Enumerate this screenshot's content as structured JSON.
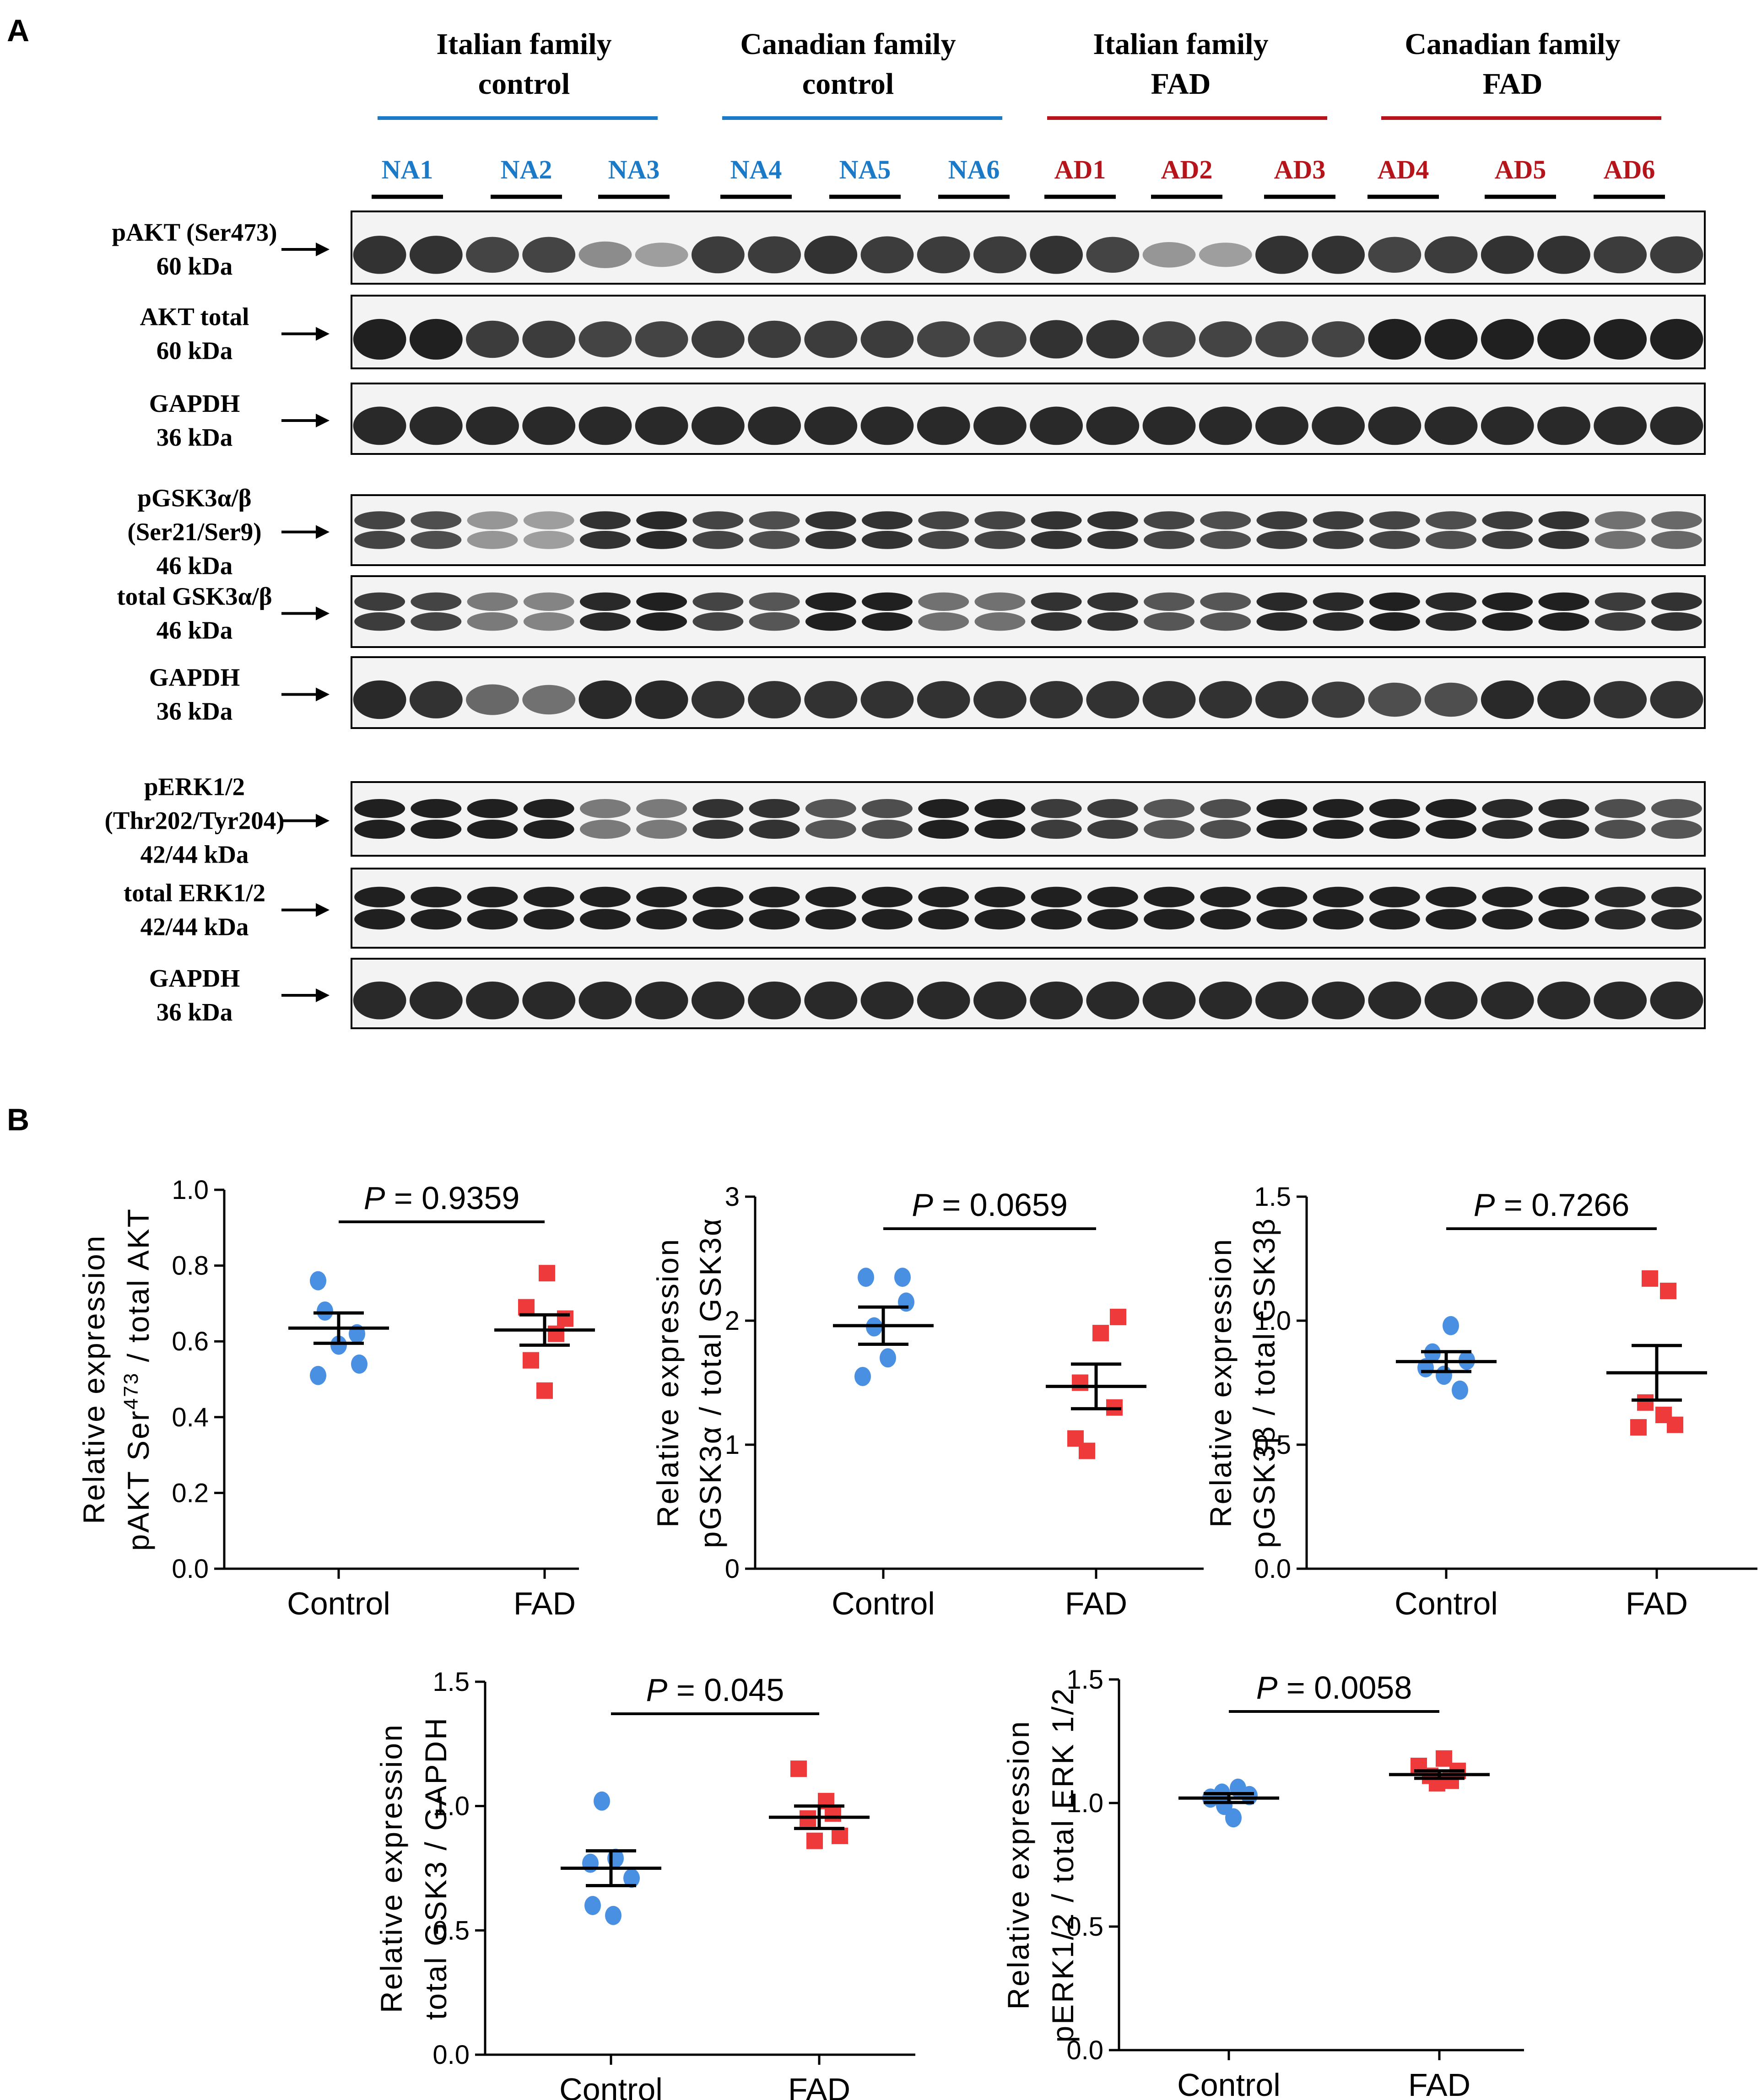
{
  "panel_a": {
    "label": "A",
    "groups": [
      {
        "line1": "Italian family",
        "line2": "control",
        "color": "#1a7ac8"
      },
      {
        "line1": "Canadian family",
        "line2": "control",
        "color": "#1a7ac8"
      },
      {
        "line1": "Italian family",
        "line2": "FAD",
        "color": "#b5141b"
      },
      {
        "line1": "Canadian family",
        "line2": "FAD",
        "color": "#b5141b"
      }
    ],
    "samples": [
      {
        "name": "NA1",
        "color": "#1a7ac8"
      },
      {
        "name": "NA2",
        "color": "#1a7ac8"
      },
      {
        "name": "NA3",
        "color": "#1a7ac8"
      },
      {
        "name": "NA4",
        "color": "#1a7ac8"
      },
      {
        "name": "NA5",
        "color": "#1a7ac8"
      },
      {
        "name": "NA6",
        "color": "#1a7ac8"
      },
      {
        "name": "AD1",
        "color": "#b5141b"
      },
      {
        "name": "AD2",
        "color": "#b5141b"
      },
      {
        "name": "AD3",
        "color": "#b5141b"
      },
      {
        "name": "AD4",
        "color": "#b5141b"
      },
      {
        "name": "AD5",
        "color": "#b5141b"
      },
      {
        "name": "AD6",
        "color": "#b5141b"
      }
    ],
    "blots": [
      {
        "lines": [
          "pAKT (Ser473)",
          "60 kDa"
        ],
        "bands": 1,
        "intensity": [
          0.9,
          0.9,
          0.8,
          0.8,
          0.4,
          0.3,
          0.85,
          0.85,
          0.9,
          0.85,
          0.85,
          0.85,
          0.9,
          0.8,
          0.35,
          0.3,
          0.9,
          0.9,
          0.8,
          0.85,
          0.9,
          0.9,
          0.85,
          0.85
        ]
      },
      {
        "lines": [
          "AKT total",
          "60 kDa"
        ],
        "bands": 1,
        "intensity": [
          1,
          1,
          0.85,
          0.85,
          0.8,
          0.8,
          0.85,
          0.85,
          0.85,
          0.85,
          0.8,
          0.8,
          0.9,
          0.9,
          0.8,
          0.8,
          0.8,
          0.8,
          1,
          1,
          1,
          1,
          1,
          1
        ]
      },
      {
        "lines": [
          "GAPDH",
          "36 kDa"
        ],
        "bands": 1,
        "intensity": [
          0.95,
          0.95,
          0.95,
          0.95,
          0.95,
          0.95,
          0.95,
          0.95,
          0.95,
          0.95,
          0.95,
          0.95,
          0.95,
          0.95,
          0.95,
          0.95,
          0.95,
          0.95,
          0.95,
          0.95,
          0.95,
          0.95,
          0.95,
          0.95
        ]
      },
      {
        "lines": [
          "pGSK3α/β",
          "(Ser21/Ser9)",
          "46 kDa"
        ],
        "bands": 2,
        "intensity": [
          0.8,
          0.75,
          0.35,
          0.3,
          0.9,
          0.95,
          0.8,
          0.75,
          0.9,
          0.9,
          0.8,
          0.8,
          0.9,
          0.9,
          0.8,
          0.75,
          0.85,
          0.85,
          0.8,
          0.75,
          0.85,
          0.9,
          0.55,
          0.6
        ]
      },
      {
        "lines": [
          "total GSK3α/β",
          "46 kDa"
        ],
        "bands": 2,
        "intensity": [
          0.85,
          0.8,
          0.5,
          0.45,
          0.95,
          1,
          0.8,
          0.7,
          1,
          1,
          0.55,
          0.55,
          0.9,
          0.9,
          0.7,
          0.7,
          0.95,
          0.95,
          1,
          0.95,
          1,
          1,
          0.85,
          0.9
        ]
      },
      {
        "lines": [
          "GAPDH",
          "36 kDa"
        ],
        "bands": 1,
        "intensity": [
          0.95,
          0.9,
          0.6,
          0.55,
          0.95,
          0.95,
          0.9,
          0.9,
          0.9,
          0.9,
          0.9,
          0.9,
          0.9,
          0.9,
          0.9,
          0.9,
          0.9,
          0.85,
          0.75,
          0.75,
          0.95,
          0.95,
          0.9,
          0.9
        ]
      },
      {
        "lines": [
          "pERK1/2",
          "(Thr202/Tyr204)",
          "42/44 kDa"
        ],
        "bands": 2,
        "intensity": [
          1,
          1,
          1,
          1,
          0.5,
          0.5,
          0.9,
          0.9,
          0.7,
          0.75,
          1,
          1,
          0.85,
          0.85,
          0.7,
          0.75,
          1,
          1,
          1,
          1,
          0.95,
          0.95,
          0.75,
          0.7
        ]
      },
      {
        "lines": [
          "total ERK1/2",
          "42/44 kDa"
        ],
        "bands": 2,
        "intensity": [
          1,
          1,
          1,
          1,
          1,
          1,
          1,
          1,
          1,
          1,
          1,
          1,
          1,
          1,
          1,
          1,
          1,
          1,
          1,
          1,
          1,
          1,
          0.95,
          0.95
        ]
      },
      {
        "lines": [
          "GAPDH",
          "36 kDa"
        ],
        "bands": 1,
        "intensity": [
          0.95,
          0.95,
          0.95,
          0.95,
          0.95,
          0.95,
          0.95,
          0.95,
          0.95,
          0.95,
          0.95,
          0.95,
          0.95,
          0.95,
          0.95,
          0.95,
          0.95,
          0.95,
          0.95,
          0.95,
          0.95,
          0.95,
          0.95,
          0.95
        ]
      }
    ]
  },
  "panel_b": {
    "label": "B"
  },
  "colors": {
    "control": "#4a90e2",
    "fad": "#ee3a3a",
    "blue_text": "#1a7ac8",
    "red_text": "#b5141b"
  },
  "chart_data": [
    {
      "type": "scatter",
      "categories": [
        "Control",
        "FAD"
      ],
      "ylabel_line1": "Relative expression",
      "ylabel_line2_pre": "pAKT Ser",
      "ylabel_line2_sup": "473",
      "ylabel_line2_post": " / total AKT",
      "ylim": [
        0,
        1.0
      ],
      "yticks": [
        "0.0",
        "0.2",
        "0.4",
        "0.6",
        "0.8",
        "1.0"
      ],
      "ytick_values": [
        0,
        0.2,
        0.4,
        0.6,
        0.8,
        1.0
      ],
      "p_italic": "P",
      "p_text": " = 0.9359",
      "series": [
        {
          "values": [
            0.76,
            0.68,
            0.62,
            0.59,
            0.54,
            0.51
          ],
          "mean": 0.635,
          "sem": 0.04
        },
        {
          "values": [
            0.78,
            0.69,
            0.66,
            0.62,
            0.55,
            0.47
          ],
          "mean": 0.63,
          "sem": 0.04
        }
      ]
    },
    {
      "type": "scatter",
      "categories": [
        "Control",
        "FAD"
      ],
      "ylabel_line1": "Relative expression",
      "ylabel_line2_pre": "pGSK3α / total GSK3α",
      "ylabel_line2_sup": "",
      "ylabel_line2_post": "",
      "ylim": [
        0,
        3
      ],
      "yticks": [
        "0",
        "1",
        "2",
        "3"
      ],
      "ytick_values": [
        0,
        1,
        2,
        3
      ],
      "p_italic": "P",
      "p_text": " = 0.0659",
      "series": [
        {
          "values": [
            2.35,
            2.35,
            2.15,
            1.95,
            1.7,
            1.55
          ],
          "mean": 1.96,
          "sem": 0.15
        },
        {
          "values": [
            2.03,
            1.9,
            1.5,
            1.3,
            1.05,
            0.95
          ],
          "mean": 1.47,
          "sem": 0.18
        }
      ]
    },
    {
      "type": "scatter",
      "categories": [
        "Control",
        "FAD"
      ],
      "ylabel_line1": "Relative expression",
      "ylabel_line2_pre": "pGSK3β / total GSK3β",
      "ylabel_line2_sup": "",
      "ylabel_line2_post": "",
      "ylim": [
        0,
        1.5
      ],
      "yticks": [
        "0.0",
        "0.5",
        "1.0",
        "1.5"
      ],
      "ytick_values": [
        0,
        0.5,
        1.0,
        1.5
      ],
      "p_italic": "P",
      "p_text": " = 0.7266",
      "series": [
        {
          "values": [
            0.98,
            0.87,
            0.84,
            0.81,
            0.78,
            0.72
          ],
          "mean": 0.835,
          "sem": 0.04
        },
        {
          "values": [
            1.17,
            1.12,
            0.67,
            0.62,
            0.58,
            0.57
          ],
          "mean": 0.79,
          "sem": 0.11
        }
      ]
    },
    {
      "type": "scatter",
      "categories": [
        "Control",
        "FAD"
      ],
      "ylabel_line1": "Relative expression",
      "ylabel_line2_pre": "total GSK3 / GAPDH",
      "ylabel_line2_sup": "",
      "ylabel_line2_post": "",
      "ylim": [
        0,
        1.5
      ],
      "yticks": [
        "0.0",
        "0.5",
        "1.0",
        "1.5"
      ],
      "ytick_values": [
        0,
        0.5,
        1.0,
        1.5
      ],
      "p_italic": "P",
      "p_text": " = 0.045",
      "series": [
        {
          "values": [
            1.02,
            0.79,
            0.77,
            0.71,
            0.6,
            0.56
          ],
          "mean": 0.75,
          "sem": 0.07
        },
        {
          "values": [
            1.15,
            1.02,
            0.97,
            0.95,
            0.88,
            0.86
          ],
          "mean": 0.955,
          "sem": 0.045
        }
      ]
    },
    {
      "type": "scatter",
      "categories": [
        "Control",
        "FAD"
      ],
      "ylabel_line1": "Relative expression",
      "ylabel_line2_pre": "pERK1/2 / total ERK 1/2",
      "ylabel_line2_sup": "",
      "ylabel_line2_post": "",
      "ylim": [
        0,
        1.5
      ],
      "yticks": [
        "0.0",
        "0.5",
        "1.0",
        "1.5"
      ],
      "ytick_values": [
        0,
        0.5,
        1.0,
        1.5
      ],
      "p_italic": "P",
      "p_text": " = 0.0058",
      "series": [
        {
          "values": [
            1.06,
            1.04,
            1.03,
            1.02,
            0.99,
            0.94
          ],
          "mean": 1.02,
          "sem": 0.018
        },
        {
          "values": [
            1.18,
            1.15,
            1.13,
            1.11,
            1.09,
            1.08
          ],
          "mean": 1.115,
          "sem": 0.015
        }
      ]
    }
  ]
}
